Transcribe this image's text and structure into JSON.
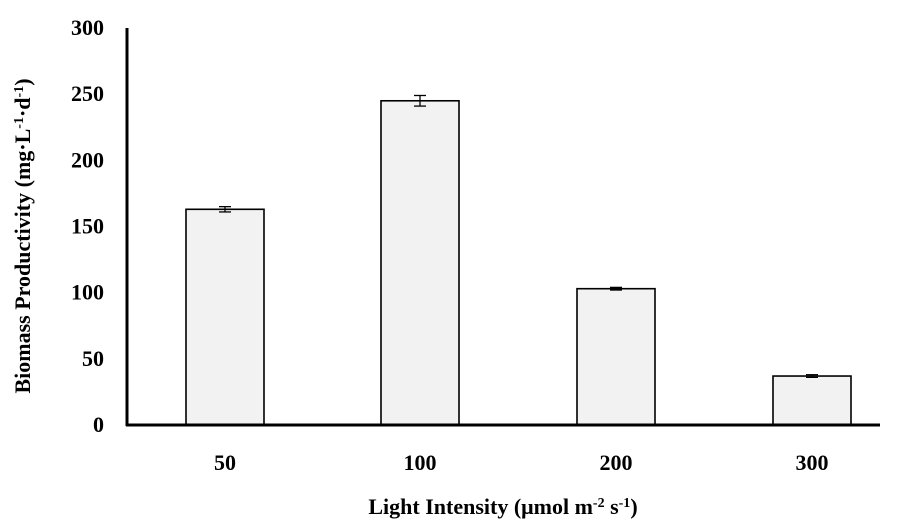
{
  "chart_data": {
    "type": "bar",
    "categories": [
      "50",
      "100",
      "200",
      "300"
    ],
    "values": [
      163,
      245,
      103,
      37
    ],
    "errors": [
      2,
      4,
      1,
      1
    ],
    "ylim": [
      0,
      300
    ],
    "yticks": [
      "0",
      "50",
      "100",
      "150",
      "200",
      "250",
      "300"
    ],
    "xlabel": {
      "main": "Light Intensity (μmol m",
      "sup1": "-2",
      "mid": " s",
      "sup2": "-1",
      "end": ")"
    },
    "ylabel": {
      "main": "Biomass Productivity (mg·L",
      "sup1": "-1",
      "mid": "·d",
      "sup2": "-1",
      "end": ")"
    },
    "bar_fill": "#f2f2f2",
    "grid": false,
    "legend": "none"
  }
}
